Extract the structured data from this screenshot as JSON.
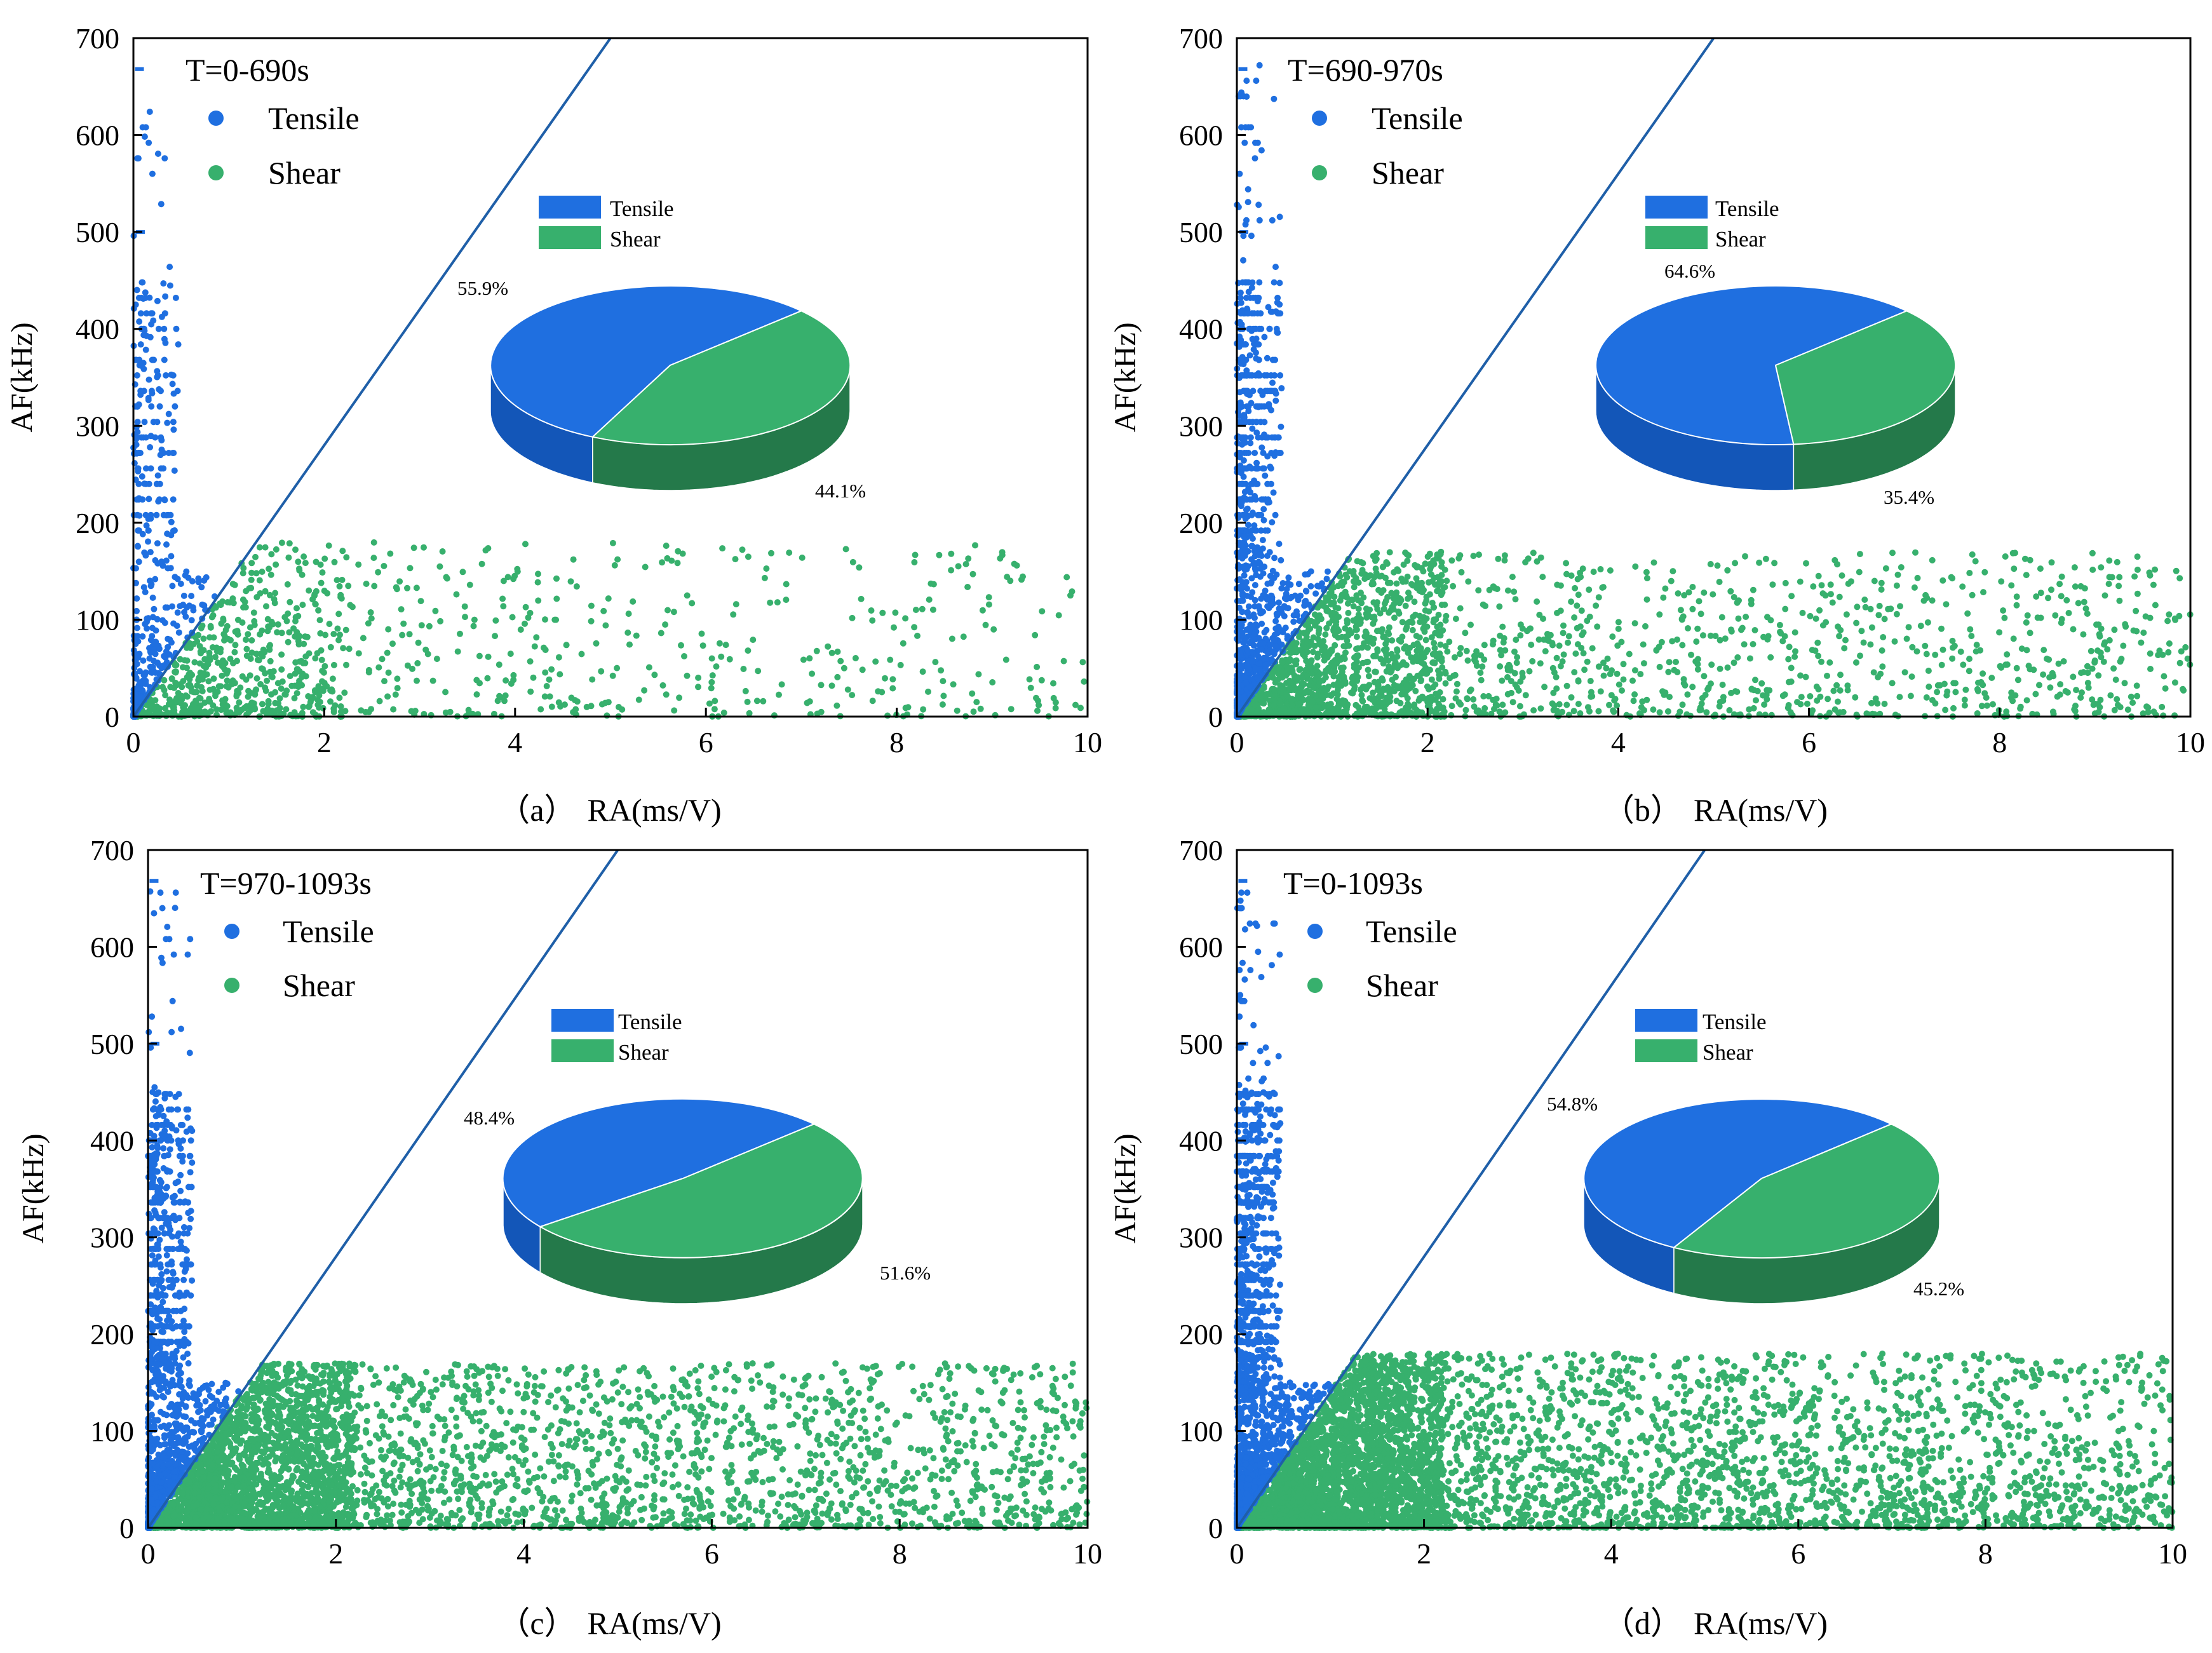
{
  "figure": {
    "colors": {
      "tensile": "#1f6fe0",
      "shear": "#37b06d",
      "tensile_side": "#1356b8",
      "shear_side": "#24794a",
      "divider_line": "#1f5fa8",
      "axis": "#000000"
    }
  },
  "chart_data": [
    {
      "type": "scatter",
      "panel": "(a)",
      "caption_label": "（a）",
      "xlabel": "RA(ms/V)",
      "ylabel": "AF(kHz)",
      "xlim": [
        0,
        10
      ],
      "ylim": [
        0,
        700
      ],
      "xticks": [
        "0",
        "2",
        "4",
        "6",
        "8",
        "10"
      ],
      "yticks": [
        "0",
        "100",
        "200",
        "300",
        "400",
        "500",
        "600",
        "700"
      ],
      "time_range": "T=0-690s",
      "legend": [
        "Tensile",
        "Shear"
      ],
      "divider_line": {
        "x1": 0,
        "y1": 0,
        "x2": 5.0,
        "y2": 700
      },
      "series": [
        {
          "name": "Tensile",
          "approx_count": 500,
          "ra_max": 1.2,
          "af_max": 670
        },
        {
          "name": "Shear",
          "approx_count": 1000,
          "ra_max": 10,
          "af_max": 180
        }
      ],
      "pie": {
        "labels": [
          "Tensile",
          "Shear"
        ],
        "values": [
          55.9,
          44.1
        ],
        "value_labels": [
          "55.9%",
          "44.1%"
        ]
      }
    },
    {
      "type": "scatter",
      "panel": "(b)",
      "caption_label": "（b）",
      "xlabel": "RA(ms/V)",
      "ylabel": "AF(kHz)",
      "xlim": [
        0,
        10
      ],
      "ylim": [
        0,
        700
      ],
      "xticks": [
        "0",
        "2",
        "4",
        "6",
        "8",
        "10"
      ],
      "yticks": [
        "0",
        "100",
        "200",
        "300",
        "400",
        "500",
        "600",
        "700"
      ],
      "time_range": "T=690-970s",
      "legend": [
        "Tensile",
        "Shear"
      ],
      "divider_line": {
        "x1": 0,
        "y1": 0,
        "x2": 5.0,
        "y2": 700
      },
      "series": [
        {
          "name": "Tensile",
          "approx_count": 1200,
          "ra_max": 1.2,
          "af_max": 670
        },
        {
          "name": "Shear",
          "approx_count": 2200,
          "ra_max": 10,
          "af_max": 170
        }
      ],
      "pie": {
        "labels": [
          "Tensile",
          "Shear"
        ],
        "values": [
          64.6,
          35.4
        ],
        "value_labels": [
          "64.6%",
          "35.4%"
        ]
      }
    },
    {
      "type": "scatter",
      "panel": "(c)",
      "caption_label": "（c）",
      "xlabel": "RA(ms/V)",
      "ylabel": "AF(kHz)",
      "xlim": [
        0,
        10
      ],
      "ylim": [
        0,
        700
      ],
      "xticks": [
        "0",
        "2",
        "4",
        "6",
        "8",
        "10"
      ],
      "yticks": [
        "0",
        "100",
        "200",
        "300",
        "400",
        "500",
        "600",
        "700"
      ],
      "time_range": "T=970-1093s",
      "legend": [
        "Tensile",
        "Shear"
      ],
      "divider_line": {
        "x1": 0,
        "y1": 0,
        "x2": 5.0,
        "y2": 700
      },
      "series": [
        {
          "name": "Tensile",
          "approx_count": 1400,
          "ra_max": 1.2,
          "af_max": 670
        },
        {
          "name": "Shear",
          "approx_count": 4200,
          "ra_max": 10,
          "af_max": 170
        }
      ],
      "pie": {
        "labels": [
          "Tensile",
          "Shear"
        ],
        "values": [
          48.4,
          51.6
        ],
        "value_labels": [
          "48.4%",
          "51.6%"
        ]
      }
    },
    {
      "type": "scatter",
      "panel": "(d)",
      "caption_label": "（d）",
      "xlabel": "RA(ms/V)",
      "ylabel": "AF(kHz)",
      "xlim": [
        0,
        10
      ],
      "ylim": [
        0,
        700
      ],
      "xticks": [
        "0",
        "2",
        "4",
        "6",
        "8",
        "10"
      ],
      "yticks": [
        "0",
        "100",
        "200",
        "300",
        "400",
        "500",
        "600",
        "700"
      ],
      "time_range": "T=0-1093s",
      "legend": [
        "Tensile",
        "Shear"
      ],
      "divider_line": {
        "x1": 0,
        "y1": 0,
        "x2": 5.0,
        "y2": 700
      },
      "series": [
        {
          "name": "Tensile",
          "approx_count": 2000,
          "ra_max": 1.2,
          "af_max": 670
        },
        {
          "name": "Shear",
          "approx_count": 5200,
          "ra_max": 10,
          "af_max": 180
        }
      ],
      "pie": {
        "labels": [
          "Tensile",
          "Shear"
        ],
        "values": [
          54.8,
          45.2
        ],
        "value_labels": [
          "54.8%",
          "45.2%"
        ]
      }
    }
  ]
}
